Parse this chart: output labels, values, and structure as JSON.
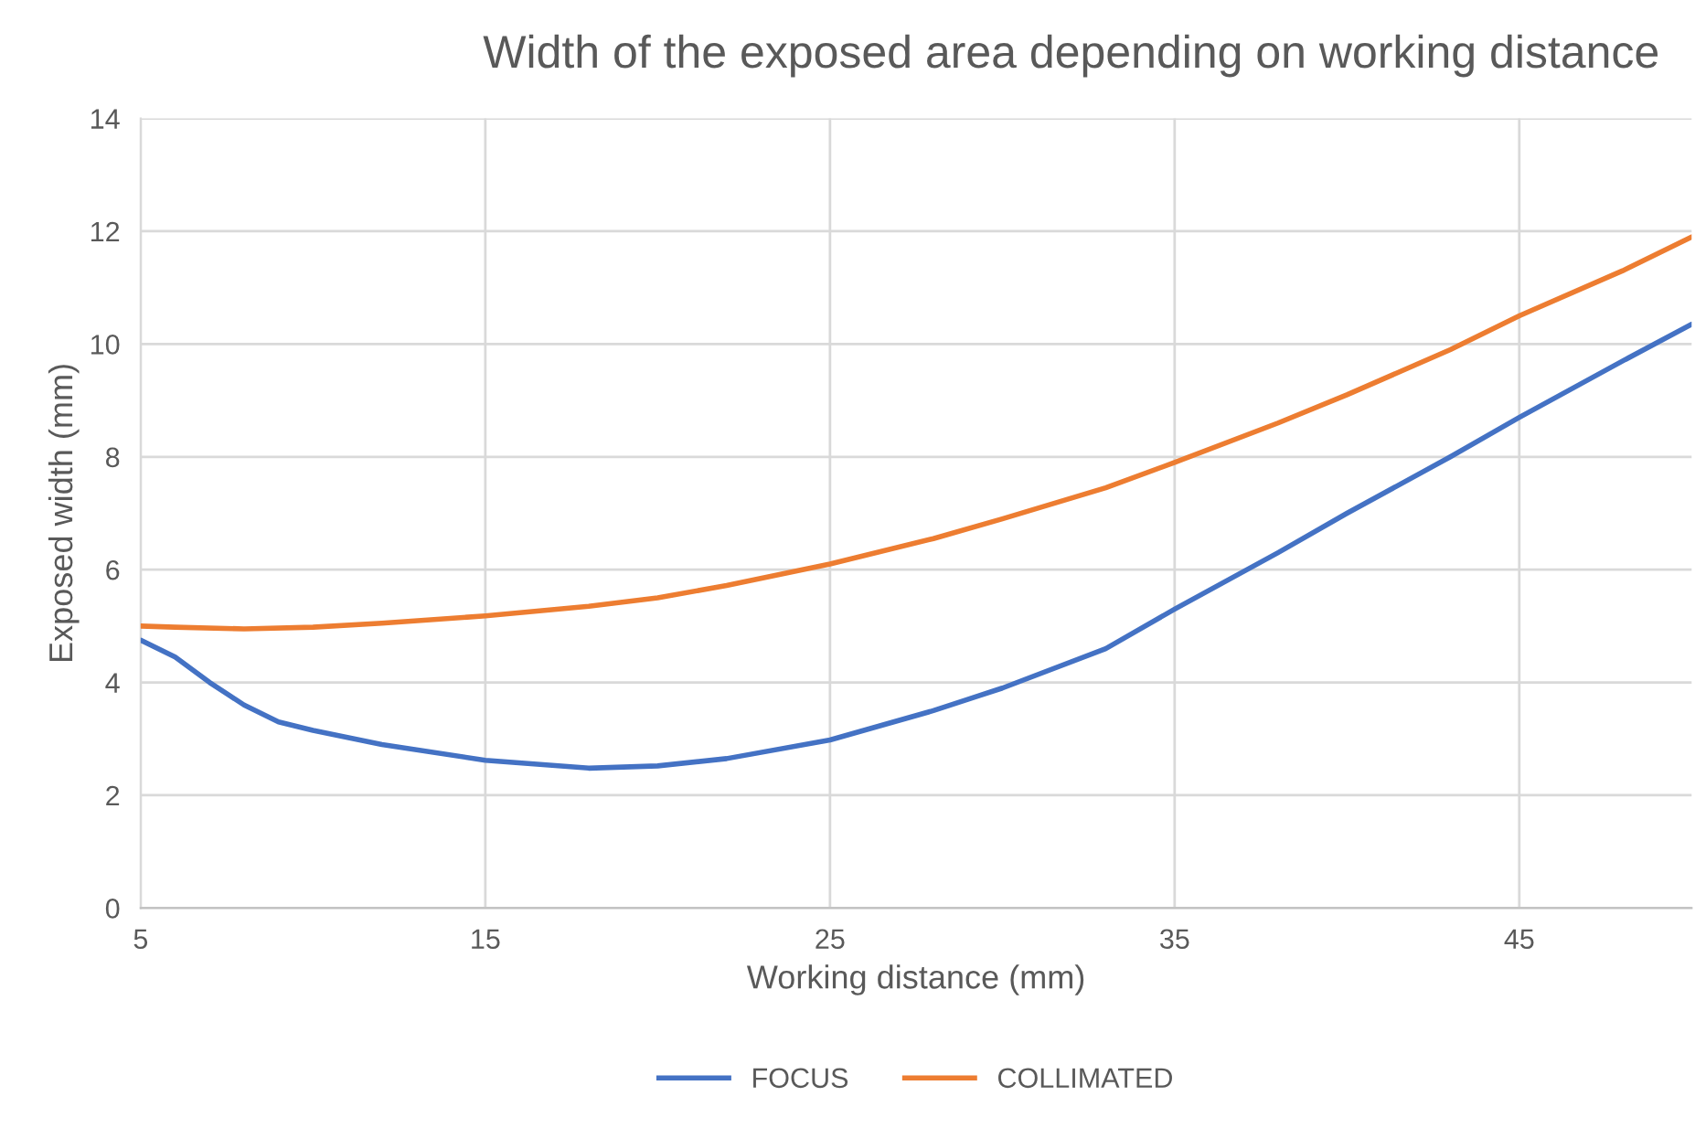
{
  "chart_data": {
    "type": "line",
    "title": "Width of the exposed area depending on working distance",
    "xlabel": "Working distance (mm)",
    "ylabel": "Exposed width (mm)",
    "xlim": [
      5,
      50
    ],
    "xticks": [
      5,
      15,
      25,
      35,
      45
    ],
    "ylim": [
      0,
      14
    ],
    "yticks": [
      0,
      2,
      4,
      6,
      8,
      10,
      12,
      14
    ],
    "grid": true,
    "legend": "bottom",
    "marker": "none",
    "line_style": "solid",
    "series": [
      {
        "name": "FOCUS",
        "color": "#4472c4",
        "x": [
          5,
          6,
          7,
          8,
          9,
          10,
          12,
          15,
          18,
          20,
          22,
          25,
          28,
          30,
          33,
          35,
          38,
          40,
          43,
          45,
          48,
          50
        ],
        "values": [
          4.75,
          4.45,
          4.0,
          3.6,
          3.3,
          3.15,
          2.9,
          2.62,
          2.48,
          2.52,
          2.65,
          2.98,
          3.5,
          3.9,
          4.6,
          5.3,
          6.3,
          7.0,
          8.0,
          8.7,
          9.7,
          10.35
        ]
      },
      {
        "name": "COLLIMATED",
        "color": "#ed7d31",
        "x": [
          5,
          6,
          8,
          10,
          12,
          15,
          18,
          20,
          22,
          25,
          28,
          30,
          33,
          35,
          38,
          40,
          43,
          45,
          48,
          50
        ],
        "values": [
          5.0,
          4.98,
          4.95,
          4.98,
          5.05,
          5.18,
          5.35,
          5.5,
          5.72,
          6.1,
          6.55,
          6.9,
          7.45,
          7.9,
          8.6,
          9.1,
          9.9,
          10.5,
          11.3,
          11.9
        ]
      }
    ]
  }
}
